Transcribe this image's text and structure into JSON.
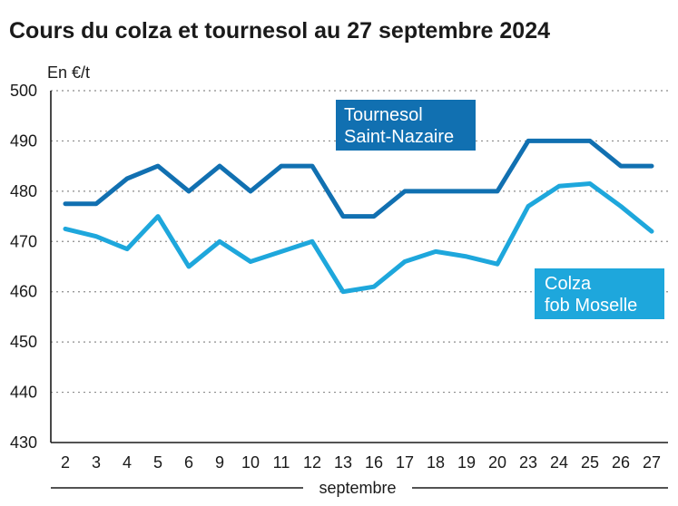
{
  "chart_data": {
    "type": "line",
    "title": "Cours du colza et tournesol au 27 septembre 2024",
    "ylabel": "En €/t",
    "xlabel": "septembre",
    "ylim": [
      430,
      500
    ],
    "yticks": [
      430,
      440,
      450,
      460,
      470,
      480,
      490,
      500
    ],
    "grid": true,
    "categories": [
      "2",
      "3",
      "4",
      "5",
      "6",
      "9",
      "10",
      "11",
      "12",
      "13",
      "16",
      "17",
      "18",
      "19",
      "20",
      "23",
      "24",
      "25",
      "26",
      "27"
    ],
    "series": [
      {
        "name": "Tournesol Saint-Nazaire",
        "label_lines": [
          "Tournesol",
          "Saint-Nazaire"
        ],
        "color": "#1170b1",
        "values": [
          477.5,
          477.5,
          482.5,
          485,
          480,
          485,
          480,
          485,
          485,
          475,
          475,
          480,
          480,
          480,
          480,
          490,
          490,
          490,
          485,
          485
        ]
      },
      {
        "name": "Colza fob Moselle",
        "label_lines": [
          "Colza",
          "fob Moselle"
        ],
        "color": "#1ea7dc",
        "values": [
          472.5,
          471,
          468.5,
          475,
          465,
          470,
          466,
          468,
          470,
          460,
          461,
          466,
          468,
          467,
          465.5,
          477,
          481,
          481.5,
          477,
          472
        ]
      }
    ]
  }
}
